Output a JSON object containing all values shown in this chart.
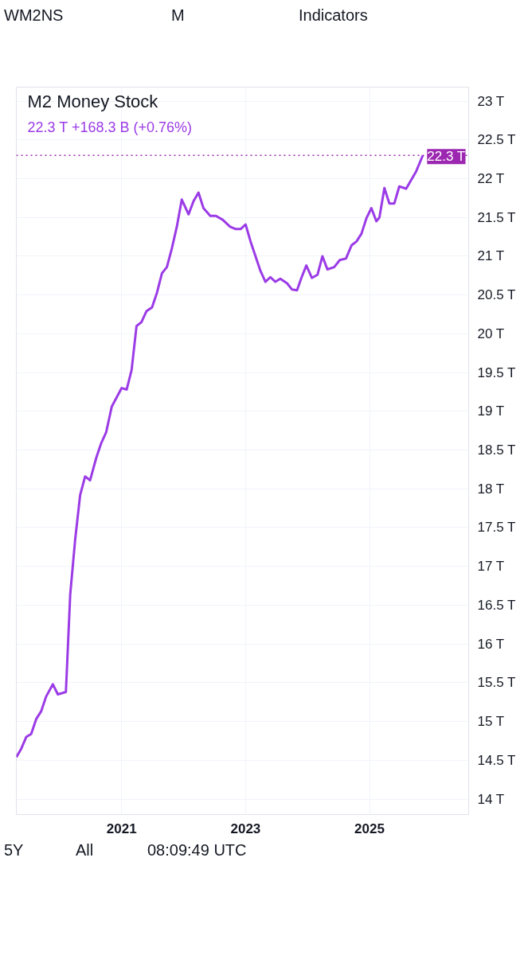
{
  "chart_data": {
    "type": "line",
    "title": "M2 Money Stock",
    "subtitle": "22.3 T  +168.3 B (+0.76%)",
    "annotations": [
      "WM2NS",
      "M",
      "Indicators",
      "5Y",
      "All",
      "08:09:49 UTC"
    ],
    "x": [
      2019.3,
      2019.38,
      2019.46,
      2019.54,
      2019.62,
      2019.7,
      2019.78,
      2019.89,
      2019.97,
      2020.1,
      2020.17,
      2020.25,
      2020.33,
      2020.41,
      2020.49,
      2020.59,
      2020.67,
      2020.75,
      2020.84,
      2021.0,
      2021.08,
      2021.16,
      2021.24,
      2021.32,
      2021.4,
      2021.49,
      2021.57,
      2021.65,
      2021.73,
      2021.81,
      2021.89,
      2021.97,
      2022.08,
      2022.16,
      2022.24,
      2022.32,
      2022.43,
      2022.52,
      2022.63,
      2022.75,
      2022.84,
      2022.92,
      2023.0,
      2023.08,
      2023.16,
      2023.24,
      2023.32,
      2023.4,
      2023.48,
      2023.56,
      2023.67,
      2023.75,
      2023.83,
      2023.9,
      2023.98,
      2024.07,
      2024.16,
      2024.24,
      2024.32,
      2024.43,
      2024.52,
      2024.62,
      2024.71,
      2024.79,
      2024.87,
      2024.95,
      2025.03,
      2025.11,
      2025.16,
      2025.24,
      2025.32,
      2025.4,
      2025.48,
      2025.59,
      2025.67,
      2025.75,
      2025.86
    ],
    "series": [
      {
        "color": "#9b3be6",
        "values": [
          14.54,
          14.65,
          14.8,
          14.84,
          15.03,
          15.13,
          15.32,
          15.48,
          15.35,
          15.38,
          16.64,
          17.35,
          17.92,
          18.16,
          18.11,
          18.4,
          18.59,
          18.73,
          19.06,
          19.3,
          19.28,
          19.53,
          20.1,
          20.15,
          20.29,
          20.34,
          20.53,
          20.78,
          20.86,
          21.1,
          21.38,
          21.73,
          21.54,
          21.71,
          21.82,
          21.62,
          21.52,
          21.52,
          21.47,
          21.38,
          21.35,
          21.35,
          21.41,
          21.19,
          21.0,
          20.81,
          20.67,
          20.73,
          20.67,
          20.71,
          20.65,
          20.57,
          20.56,
          20.72,
          20.88,
          20.72,
          20.76,
          21.0,
          20.83,
          20.86,
          20.95,
          20.97,
          21.14,
          21.19,
          21.29,
          21.49,
          21.62,
          21.45,
          21.5,
          21.88,
          21.68,
          21.68,
          21.9,
          21.87,
          21.98,
          22.09,
          22.3
        ]
      }
    ],
    "xlim": [
      2019.3,
      2026.6
    ],
    "xticks": [
      2021,
      2023,
      2025
    ],
    "ylim": [
      13.8,
      23.18
    ],
    "yticks": [
      {
        "value": 14,
        "label": "14 T"
      },
      {
        "value": 14.5,
        "label": "14.5 T"
      },
      {
        "value": 15,
        "label": "15 T"
      },
      {
        "value": 15.5,
        "label": "15.5 T"
      },
      {
        "value": 16,
        "label": "16 T"
      },
      {
        "value": 16.5,
        "label": "16.5 T"
      },
      {
        "value": 17,
        "label": "17 T"
      },
      {
        "value": 17.5,
        "label": "17.5 T"
      },
      {
        "value": 18,
        "label": "18 T"
      },
      {
        "value": 18.5,
        "label": "18.5 T"
      },
      {
        "value": 19,
        "label": "19 T"
      },
      {
        "value": 19.5,
        "label": "19.5 T"
      },
      {
        "value": 20,
        "label": "20 T"
      },
      {
        "value": 20.5,
        "label": "20.5 T"
      },
      {
        "value": 21,
        "label": "21 T"
      },
      {
        "value": 21.5,
        "label": "21.5 T"
      },
      {
        "value": 22,
        "label": "22 T"
      },
      {
        "value": 22.5,
        "label": "22.5 T"
      },
      {
        "value": 23,
        "label": "23 T"
      }
    ],
    "ref_lines": [
      {
        "axis": "y",
        "value": 22.3,
        "label": "22.3 T",
        "color": "#9c27b0",
        "line_style": "dotted"
      }
    ],
    "grid": true,
    "marker": "none",
    "line_style": "solid"
  }
}
